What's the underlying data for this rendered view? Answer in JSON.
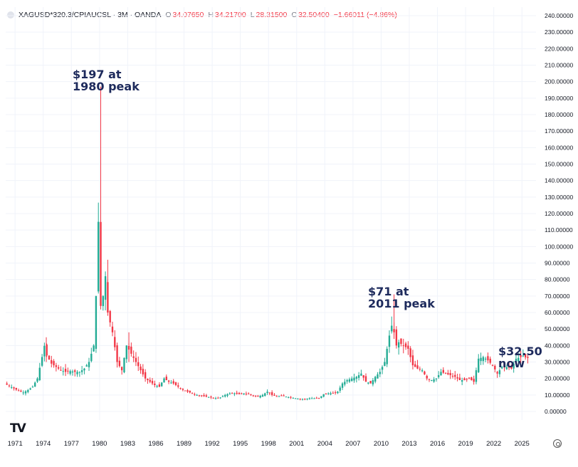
{
  "legend": {
    "symbol": "XAGUSD*320.3/CPIAUCSL · 3M · OANDA",
    "open_label": "O",
    "open": "34.07650",
    "high_label": "H",
    "high": "34.21700",
    "low_label": "L",
    "low": "28.31500",
    "close_label": "C",
    "close": "32.50400",
    "change": "−1.66011 (−4.86%)"
  },
  "annotations": {
    "peak_1980": "$197 at\n1980 peak",
    "peak_2011": "$71 at\n2011 peak",
    "now": "$32.50\nnow"
  },
  "logo_text": "TV",
  "icons": {
    "settings": "gear-icon",
    "logo": "tradingview-logo"
  },
  "colors": {
    "up": "#22ab94",
    "down": "#f23645",
    "grid": "#f0f3fa",
    "axis_text": "#131722",
    "annotation": "#1d2a5c"
  },
  "chart_data": {
    "type": "candlestick",
    "title": "",
    "xlabel": "",
    "ylabel": "",
    "x_range": [
      1970.0,
      2026.5
    ],
    "ylim": [
      0,
      245
    ],
    "grid": true,
    "x_ticks": [
      1971,
      1974,
      1977,
      1980,
      1983,
      1986,
      1989,
      1992,
      1995,
      1998,
      2001,
      2004,
      2007,
      2010,
      2013,
      2016,
      2019,
      2022,
      2025
    ],
    "y_ticks": [
      "0.00000",
      "10.00000",
      "20.00000",
      "30.00000",
      "40.00000",
      "50.00000",
      "60.00000",
      "70.00000",
      "80.00000",
      "90.00000",
      "100.00000",
      "110.00000",
      "120.00000",
      "130.00000",
      "140.00000",
      "150.00000",
      "160.00000",
      "170.00000",
      "180.00000",
      "190.00000",
      "200.00000",
      "210.00000",
      "220.00000",
      "230.00000",
      "240.00000"
    ],
    "series_points": [
      [
        1970.0,
        17
      ],
      [
        1970.5,
        15.5
      ],
      [
        1971.0,
        14
      ],
      [
        1971.5,
        12.5
      ],
      [
        1972.0,
        11.5
      ],
      [
        1972.5,
        13
      ],
      [
        1973.0,
        15
      ],
      [
        1973.5,
        20
      ],
      [
        1974.0,
        33
      ],
      [
        1974.2,
        41
      ],
      [
        1974.5,
        34
      ],
      [
        1975.0,
        29
      ],
      [
        1975.5,
        27
      ],
      [
        1976.0,
        25
      ],
      [
        1976.5,
        24
      ],
      [
        1977.0,
        24.5
      ],
      [
        1977.5,
        24
      ],
      [
        1978.0,
        24
      ],
      [
        1978.5,
        26
      ],
      [
        1979.0,
        30
      ],
      [
        1979.5,
        40
      ],
      [
        1979.75,
        70
      ],
      [
        1980.0,
        115
      ],
      [
        1980.25,
        64
      ],
      [
        1980.5,
        70
      ],
      [
        1980.75,
        82
      ],
      [
        1981.0,
        60
      ],
      [
        1981.5,
        48
      ],
      [
        1982.0,
        30
      ],
      [
        1982.5,
        25
      ],
      [
        1983.0,
        40
      ],
      [
        1983.5,
        35
      ],
      [
        1984.0,
        30
      ],
      [
        1984.5,
        25
      ],
      [
        1985.0,
        20
      ],
      [
        1985.5,
        18
      ],
      [
        1986.0,
        16
      ],
      [
        1986.5,
        15
      ],
      [
        1987.0,
        20
      ],
      [
        1987.5,
        18
      ],
      [
        1988.0,
        17
      ],
      [
        1988.5,
        15
      ],
      [
        1989.0,
        13
      ],
      [
        1989.5,
        12
      ],
      [
        1990.0,
        11
      ],
      [
        1990.5,
        10
      ],
      [
        1991.0,
        9.5
      ],
      [
        1991.5,
        9
      ],
      [
        1992.0,
        8.5
      ],
      [
        1992.5,
        8
      ],
      [
        1993.0,
        8.5
      ],
      [
        1993.5,
        10
      ],
      [
        1994.0,
        11
      ],
      [
        1994.5,
        11
      ],
      [
        1995.0,
        10.5
      ],
      [
        1995.5,
        11
      ],
      [
        1996.0,
        10.5
      ],
      [
        1996.5,
        9.5
      ],
      [
        1997.0,
        9
      ],
      [
        1997.5,
        10
      ],
      [
        1998.0,
        12
      ],
      [
        1998.5,
        10
      ],
      [
        1999.0,
        9
      ],
      [
        1999.5,
        9.5
      ],
      [
        2000.0,
        9
      ],
      [
        2000.5,
        8.5
      ],
      [
        2001.0,
        8
      ],
      [
        2001.5,
        7.5
      ],
      [
        2002.0,
        7.5
      ],
      [
        2002.5,
        8
      ],
      [
        2003.0,
        8
      ],
      [
        2003.5,
        8
      ],
      [
        2004.0,
        10.5
      ],
      [
        2004.5,
        11
      ],
      [
        2005.0,
        11
      ],
      [
        2005.5,
        12
      ],
      [
        2006.0,
        17
      ],
      [
        2006.5,
        19
      ],
      [
        2007.0,
        20
      ],
      [
        2007.5,
        21
      ],
      [
        2008.0,
        23
      ],
      [
        2008.5,
        18
      ],
      [
        2009.0,
        17
      ],
      [
        2009.5,
        21
      ],
      [
        2010.0,
        24
      ],
      [
        2010.5,
        30
      ],
      [
        2011.0,
        46
      ],
      [
        2011.25,
        52
      ],
      [
        2011.5,
        48
      ],
      [
        2011.75,
        40
      ],
      [
        2012.0,
        42
      ],
      [
        2012.5,
        40
      ],
      [
        2013.0,
        38
      ],
      [
        2013.5,
        28
      ],
      [
        2014.0,
        26
      ],
      [
        2014.5,
        25
      ],
      [
        2015.0,
        20
      ],
      [
        2015.5,
        19
      ],
      [
        2016.0,
        20
      ],
      [
        2016.5,
        24
      ],
      [
        2017.0,
        23
      ],
      [
        2017.5,
        22
      ],
      [
        2018.0,
        21
      ],
      [
        2018.5,
        19
      ],
      [
        2019.0,
        19
      ],
      [
        2019.5,
        20
      ],
      [
        2020.0,
        18
      ],
      [
        2020.5,
        32
      ],
      [
        2021.0,
        33
      ],
      [
        2021.5,
        31
      ],
      [
        2022.0,
        28
      ],
      [
        2022.5,
        23
      ],
      [
        2023.0,
        27
      ],
      [
        2023.5,
        27
      ],
      [
        2024.0,
        26
      ],
      [
        2024.5,
        32
      ],
      [
        2025.0,
        33
      ],
      [
        2025.3,
        34
      ],
      [
        2025.55,
        32.5
      ]
    ],
    "spikes": [
      {
        "x": 1980.0,
        "high": 197,
        "low": 62
      },
      {
        "x": 2011.25,
        "high": 71,
        "low": 44
      },
      {
        "x": 1974.2,
        "high": 45,
        "low": 30
      },
      {
        "x": 1983.0,
        "high": 48,
        "low": 30
      },
      {
        "x": 1980.75,
        "high": 92,
        "low": 58
      }
    ]
  }
}
